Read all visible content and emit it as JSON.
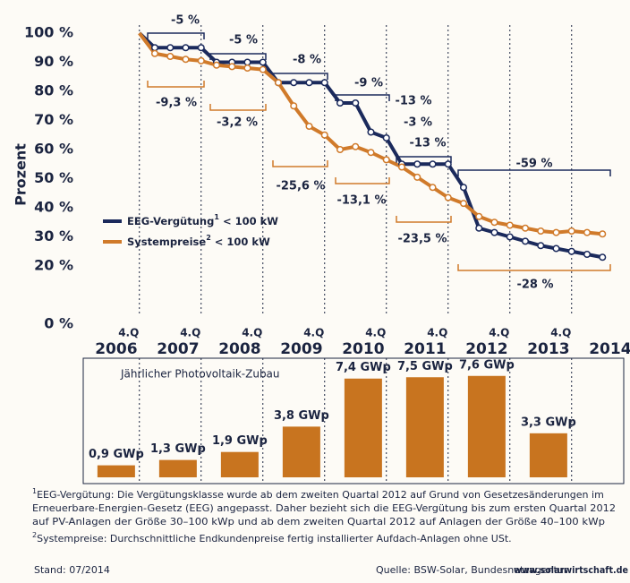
{
  "chart_data": [
    {
      "type": "line",
      "y_label": "Prozent",
      "x": [
        2006.75,
        2007.0,
        2007.25,
        2007.5,
        2007.75,
        2008.0,
        2008.25,
        2008.5,
        2008.75,
        2009.0,
        2009.25,
        2009.5,
        2009.75,
        2010.0,
        2010.25,
        2010.5,
        2010.75,
        2011.0,
        2011.25,
        2011.5,
        2011.75,
        2012.0,
        2012.25,
        2012.5,
        2012.75,
        2013.0,
        2013.25,
        2013.5,
        2013.75,
        2014.0,
        2014.25
      ],
      "series": [
        {
          "name": "EEG-Vergütung",
          "note_ref": "1",
          "name_suffix": " < 100 kW",
          "color": "#1b2a5c",
          "values": [
            100,
            95,
            95,
            95,
            95,
            90,
            90,
            90,
            90,
            83,
            83,
            83,
            83,
            76,
            76,
            66,
            64,
            55,
            55,
            55,
            55,
            47,
            33,
            31.5,
            30,
            28.5,
            27,
            26,
            25,
            24,
            23
          ]
        },
        {
          "name": "Systempreise",
          "note_ref": "2",
          "name_suffix": " < 100 kW",
          "color": "#d07a2a",
          "values": [
            100,
            93,
            92,
            91,
            90.5,
            89,
            88.5,
            88,
            87.5,
            83,
            75,
            68,
            65,
            60,
            61,
            59,
            56.5,
            54,
            50.5,
            47,
            43.5,
            41.5,
            37,
            35,
            34,
            33,
            32,
            31.5,
            32,
            31.5,
            31
          ]
        }
      ],
      "xlim": [
        2006.5,
        2014.5
      ],
      "xticks": [
        {
          "value": 2006.75,
          "label": "4.Q"
        },
        {
          "value": 2007.75,
          "label": "4.Q"
        },
        {
          "value": 2008.75,
          "label": "4.Q"
        },
        {
          "value": 2009.75,
          "label": "4.Q"
        },
        {
          "value": 2010.75,
          "label": "4.Q"
        },
        {
          "value": 2011.75,
          "label": "4.Q"
        },
        {
          "value": 2012.75,
          "label": "4.Q"
        },
        {
          "value": 2013.75,
          "label": "4.Q"
        }
      ],
      "year_labels": [
        "2006",
        "2007",
        "2008",
        "2009",
        "2010",
        "2011",
        "2012",
        "2013",
        "2014"
      ],
      "ylim": [
        0,
        100
      ],
      "yticks": [
        {
          "value": 0,
          "label": "0 %"
        },
        {
          "value": 20,
          "label": "20 %"
        },
        {
          "value": 30,
          "label": "30 %"
        },
        {
          "value": 40,
          "label": "40 %"
        },
        {
          "value": 50,
          "label": "50 %"
        },
        {
          "value": 60,
          "label": "60 %"
        },
        {
          "value": 70,
          "label": "70 %"
        },
        {
          "value": 80,
          "label": "80 %"
        },
        {
          "value": 90,
          "label": "90 %"
        },
        {
          "value": 100,
          "label": "100 %"
        }
      ],
      "annotations_eeg": [
        "-5 %",
        "-5 %",
        "-8 %",
        "-9 %",
        "-13 %",
        "-3 %",
        "-13 %",
        "-59 %"
      ],
      "annotations_system": [
        "-9,3 %",
        "-3,2 %",
        "-25,6 %",
        "-13,1 %",
        "-23,5 %",
        "-28 %"
      ]
    },
    {
      "type": "bar",
      "title": "Jährlicher Photovoltaik-Zubau",
      "values": [
        0.9,
        1.3,
        1.9,
        3.8,
        7.4,
        7.5,
        7.6,
        3.3
      ],
      "value_labels": [
        "0,9 GWp",
        "1,3 GWp",
        "1,9 GWp",
        "3,8 GWp",
        "7,4 GWp",
        "7,5 GWp",
        "7,6 GWp",
        "3,3 GWp"
      ],
      "color": "#c8741f"
    }
  ],
  "footnotes": [
    {
      "marker": "1",
      "lines": [
        "EEG-Vergütung: Die Vergütungsklasse wurde ab dem zweiten Quartal 2012 auf Grund von Gesetzesänderungen im",
        "Erneuerbare-Energien-Gesetz (EEG) angepasst. Daher bezieht sich die EEG-Vergütung bis zum ersten Quartal 2012",
        "auf PV-Anlagen der Größe 30–100 kWp und ab dem zweiten Quartal 2012 auf Anlagen der Größe 40–100 kWp"
      ]
    },
    {
      "marker": "2",
      "lines": [
        "Systempreise: Durchschnittliche Endkundenpreise fertig installierter Aufdach-Anlagen ohne USt."
      ]
    }
  ],
  "footer": {
    "date": "Stand: 07/2014",
    "source": "Quelle: BSW-Solar, Bundesnetzagentur",
    "website": "www.solarwirtschaft.de"
  }
}
